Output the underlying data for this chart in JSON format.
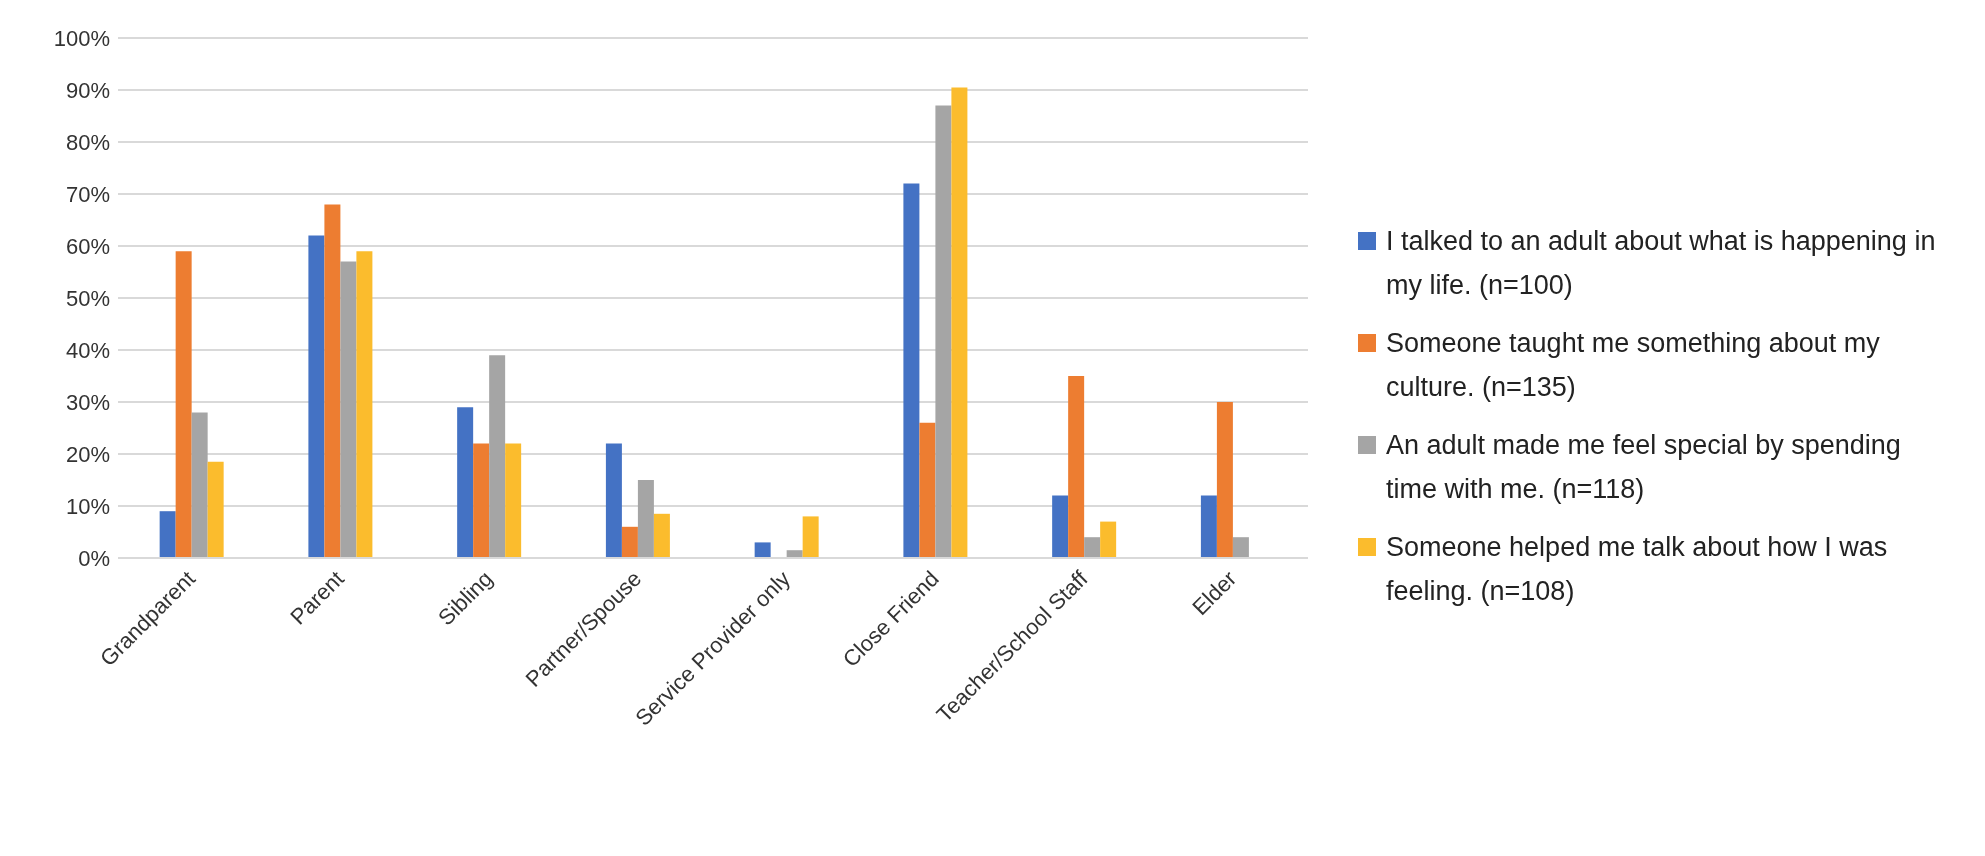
{
  "chart_data": {
    "type": "bar",
    "categories": [
      "Grandparent",
      "Parent",
      "Sibling",
      "Partner/Spouse",
      "Service Provider only",
      "Close Friend",
      "Teacher/School Staff",
      "Elder"
    ],
    "series": [
      {
        "name": "I talked to an adult about what is happening in my life. (n=100)",
        "color": "#4472c4",
        "values": [
          9,
          62,
          29,
          22,
          3,
          72,
          12,
          12
        ]
      },
      {
        "name": "Someone taught me something about my culture. (n=135)",
        "color": "#ed7d31",
        "values": [
          59,
          68,
          22,
          6,
          0,
          26,
          35,
          30
        ]
      },
      {
        "name": "An adult made me feel special by spending time with me. (n=118)",
        "color": "#a5a5a5",
        "values": [
          28,
          57,
          39,
          15,
          1.5,
          87,
          4,
          4
        ]
      },
      {
        "name": "Someone helped me talk about how I was feeling. (n=108)",
        "color": "#fbbc2d",
        "values": [
          18.5,
          59,
          22,
          8.5,
          8,
          90.5,
          7,
          0
        ]
      }
    ],
    "ylim": [
      0,
      100
    ],
    "yticks": [
      {
        "value": 0,
        "label": "0%"
      },
      {
        "value": 10,
        "label": "10%"
      },
      {
        "value": 20,
        "label": "20%"
      },
      {
        "value": 30,
        "label": "30%"
      },
      {
        "value": 40,
        "label": "40%"
      },
      {
        "value": 50,
        "label": "50%"
      },
      {
        "value": 60,
        "label": "60%"
      },
      {
        "value": 70,
        "label": "70%"
      },
      {
        "value": 80,
        "label": "80%"
      },
      {
        "value": 90,
        "label": "90%"
      },
      {
        "value": 100,
        "label": "100%"
      }
    ],
    "grid": "y",
    "legend": "right"
  }
}
